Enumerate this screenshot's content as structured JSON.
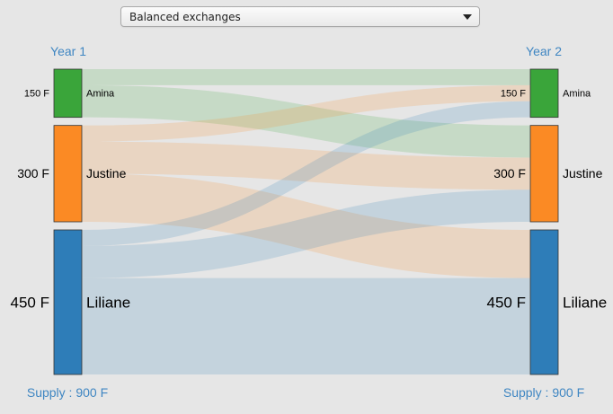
{
  "selector": {
    "selected": "Balanced exchanges"
  },
  "left_column": {
    "title": "Year 1",
    "supply": "Supply : 900 F"
  },
  "right_column": {
    "title": "Year 2",
    "supply": "Supply : 900 F"
  },
  "nodes": [
    {
      "name": "Amina",
      "amount_label": "150 F",
      "value": 150,
      "color": "#3aa53a"
    },
    {
      "name": "Justine",
      "amount_label": "300 F",
      "value": 300,
      "color": "#fb8a24"
    },
    {
      "name": "Liliane",
      "amount_label": "450 F",
      "value": 450,
      "color": "#2e7db8"
    }
  ],
  "flows": [
    {
      "source": "Amina",
      "target": "Amina",
      "value": 50
    },
    {
      "source": "Amina",
      "target": "Justine",
      "value": 100
    },
    {
      "source": "Justine",
      "target": "Amina",
      "value": 50
    },
    {
      "source": "Justine",
      "target": "Justine",
      "value": 100
    },
    {
      "source": "Justine",
      "target": "Liliane",
      "value": 150
    },
    {
      "source": "Liliane",
      "target": "Amina",
      "value": 50
    },
    {
      "source": "Liliane",
      "target": "Justine",
      "value": 100
    },
    {
      "source": "Liliane",
      "target": "Liliane",
      "value": 300
    }
  ]
}
